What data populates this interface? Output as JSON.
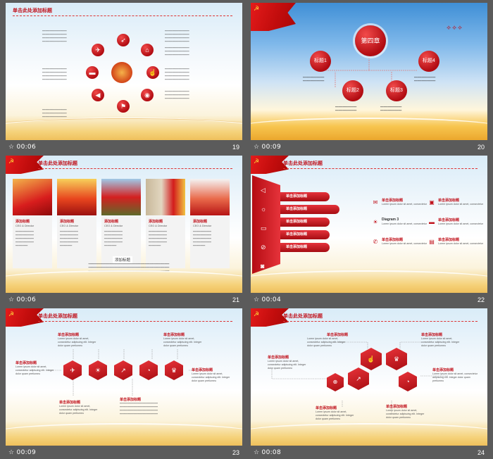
{
  "slides": [
    {
      "time": "00:06",
      "num": "19",
      "header": "单击此处添加标题"
    },
    {
      "time": "00:09",
      "num": "20",
      "chapter": "第四章",
      "titles": [
        "标题1",
        "标题2",
        "标题3",
        "标题4"
      ]
    },
    {
      "time": "00:06",
      "num": "21",
      "header": "单击此处添加标题",
      "cards": [
        {
          "title": "添加标题",
          "role": "CEO & Director"
        },
        {
          "title": "添加标题",
          "role": "CEO & Director"
        },
        {
          "title": "添加标题",
          "role": "CEO & Director"
        },
        {
          "title": "添加标题",
          "role": "CEO & Director"
        },
        {
          "title": "添加标题",
          "role": "CEO & Director"
        }
      ],
      "caption": "添加标题"
    },
    {
      "time": "00:04",
      "num": "22",
      "header": "单击此处添加标题",
      "tab_label": "单击添加标题",
      "items": [
        {
          "title": "单击添加标题",
          "text": "Lorem ipsum dolor sit amet, consectetur"
        },
        {
          "title": "单击添加标题",
          "text": "Lorem ipsum dolor sit amet, consectetur"
        },
        {
          "title": "Diagram 3",
          "text": "Lorem ipsum dolor sit amet, consectetur"
        },
        {
          "title": "单击添加标题",
          "text": "Lorem ipsum dolor sit amet, consectetur"
        },
        {
          "title": "单击添加标题",
          "text": "Lorem ipsum dolor sit amet, consectetur"
        },
        {
          "title": "单击添加标题",
          "text": "Lorem ipsum dolor sit amet, consectetur"
        }
      ]
    },
    {
      "time": "00:09",
      "num": "23",
      "header": "单击此处添加标题",
      "block_title": "单击添加标题",
      "block_text": "Lorem ipsum dolor sit amet, consectetur adipiscing elit. Integer dolor quam pretiumeu"
    },
    {
      "time": "00:08",
      "num": "24",
      "header": "单击此处添加标题",
      "block_title": "单击添加标题",
      "block_text": "Lorem ipsum dolor sit amet, consectetur adipiscing elit. Integer dolor quam pretiumeu"
    }
  ],
  "icons": {
    "clock": "clock-icon",
    "star": "star-icon"
  }
}
